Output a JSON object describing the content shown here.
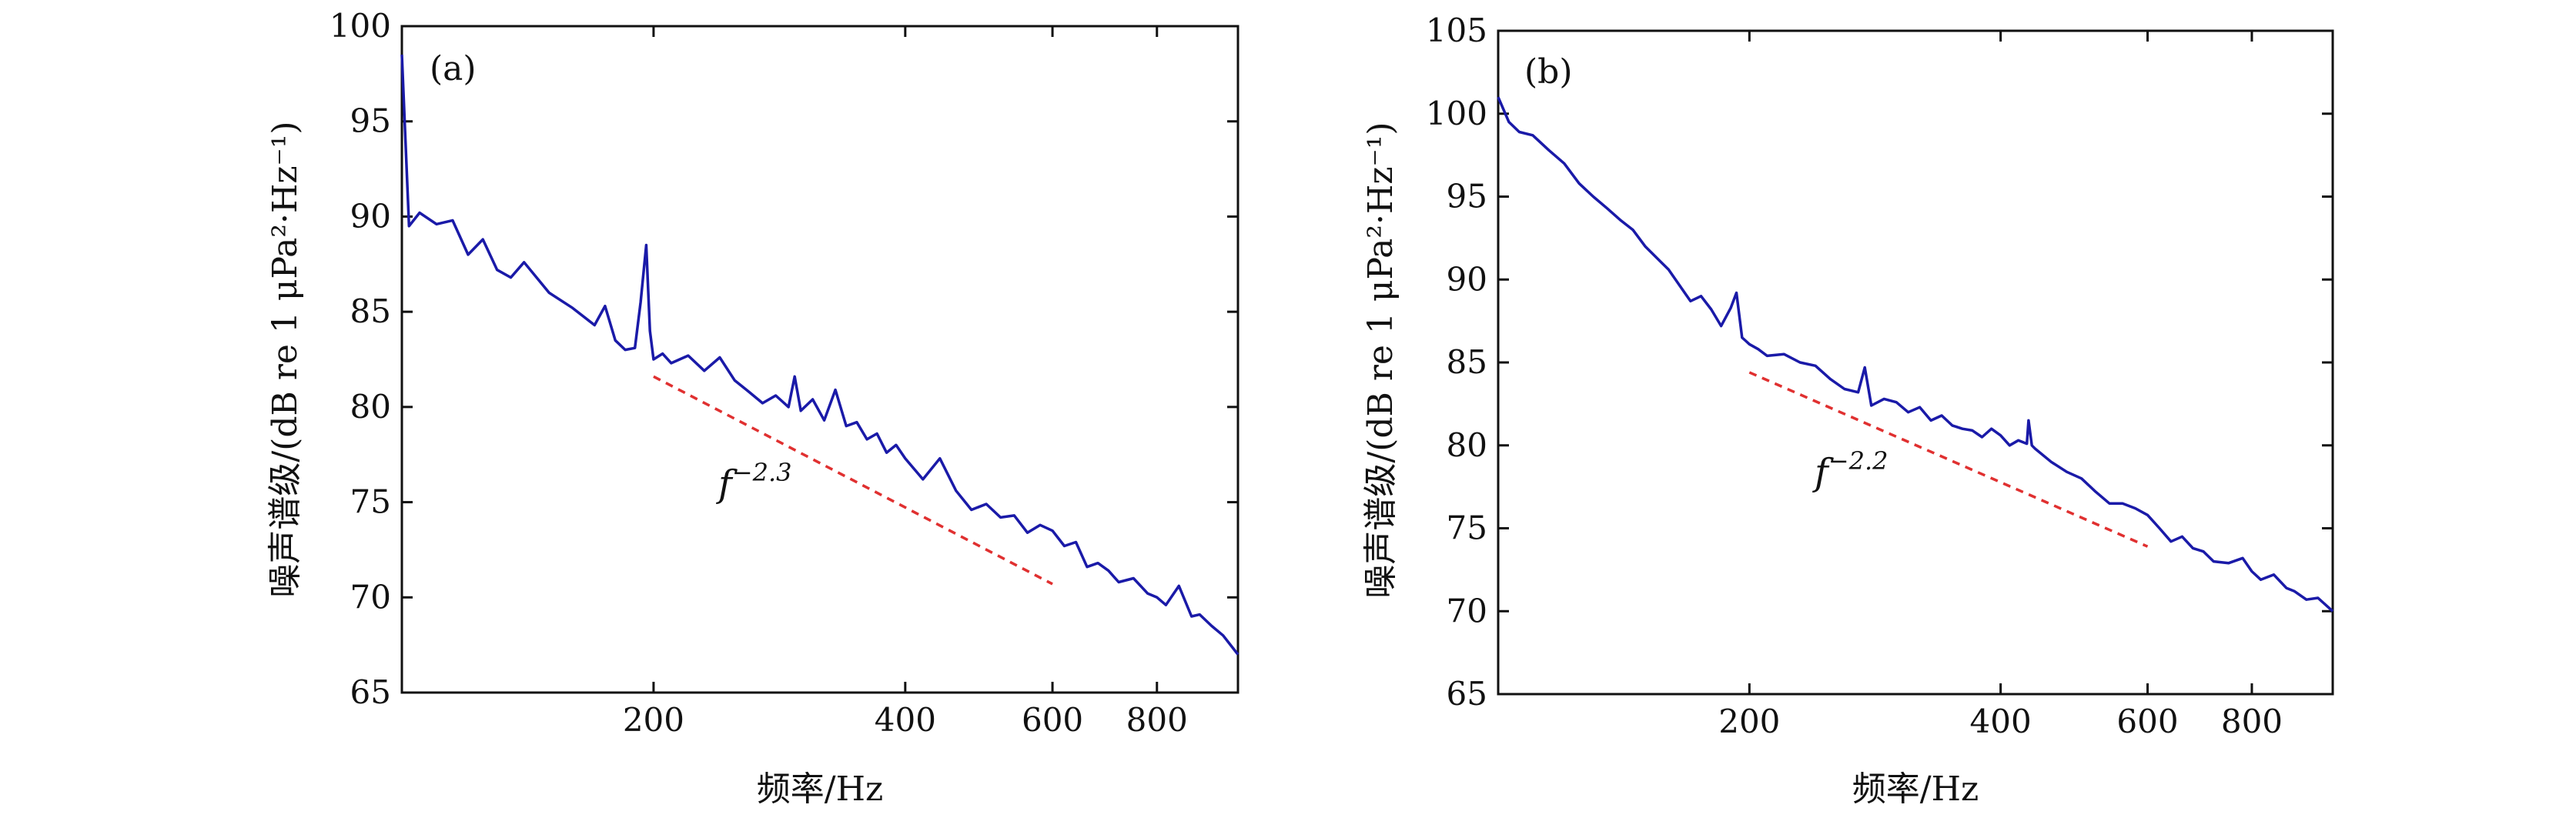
{
  "chart_data": [
    {
      "type": "line",
      "panel_label": "(a)",
      "xlabel": "频率/Hz",
      "ylabel": "噪声谱级/(dB re 1 μPa²·Hz⁻¹)",
      "x_scale": "log",
      "xlim": [
        100,
        1000
      ],
      "ylim": [
        65,
        100
      ],
      "x_ticks": [
        200,
        400,
        600,
        800
      ],
      "y_ticks": [
        65,
        70,
        75,
        80,
        85,
        90,
        95,
        100
      ],
      "grid": false,
      "legend": "none",
      "line_color": "#1a1aa8",
      "fit_color": "#e03030",
      "series": [
        {
          "x": [
            100,
            102,
            105,
            110,
            115,
            120,
            125,
            130,
            135,
            140,
            150,
            160,
            170,
            175,
            180,
            185,
            190,
            193,
            196,
            198,
            200,
            205,
            210,
            220,
            230,
            240,
            250,
            260,
            270,
            280,
            290,
            295,
            300,
            310,
            320,
            330,
            340,
            350,
            360,
            370,
            380,
            390,
            400,
            420,
            440,
            460,
            480,
            500,
            520,
            540,
            560,
            580,
            600,
            620,
            640,
            660,
            680,
            700,
            720,
            750,
            780,
            800,
            820,
            850,
            880,
            900,
            930,
            960,
            1000
          ],
          "y": [
            98.5,
            89.5,
            90.2,
            89.6,
            89.8,
            88.0,
            88.8,
            87.2,
            86.8,
            87.6,
            86.0,
            85.2,
            84.3,
            85.3,
            83.5,
            83.0,
            83.1,
            85.5,
            88.5,
            84.0,
            82.5,
            82.8,
            82.3,
            82.7,
            81.9,
            82.6,
            81.4,
            80.8,
            80.2,
            80.6,
            80.0,
            81.6,
            79.8,
            80.4,
            79.3,
            80.9,
            79.0,
            79.2,
            78.3,
            78.6,
            77.6,
            78.0,
            77.3,
            76.2,
            77.3,
            75.6,
            74.6,
            74.9,
            74.2,
            74.3,
            73.4,
            73.8,
            73.5,
            72.7,
            72.9,
            71.6,
            71.8,
            71.4,
            70.8,
            71.0,
            70.2,
            70.0,
            69.6,
            70.6,
            69.0,
            69.1,
            68.5,
            68.0,
            67.0
          ]
        }
      ],
      "fit_line": {
        "label_base": "f",
        "label_exp": "−2.3",
        "x": [
          200,
          600
        ],
        "y": [
          81.6,
          70.7
        ]
      }
    },
    {
      "type": "line",
      "panel_label": "(b)",
      "xlabel": "频率/Hz",
      "ylabel": "噪声谱级/(dB re 1 μPa²·Hz⁻¹)",
      "x_scale": "log",
      "xlim": [
        100,
        1000
      ],
      "ylim": [
        65,
        105
      ],
      "x_ticks": [
        200,
        400,
        600,
        800
      ],
      "y_ticks": [
        65,
        70,
        75,
        80,
        85,
        90,
        95,
        100,
        105
      ],
      "grid": false,
      "legend": "none",
      "line_color": "#1a1aa8",
      "fit_color": "#e03030",
      "series": [
        {
          "x": [
            100,
            103,
            106,
            110,
            115,
            120,
            125,
            130,
            135,
            140,
            145,
            150,
            160,
            170,
            175,
            180,
            185,
            190,
            193,
            196,
            198,
            200,
            205,
            210,
            220,
            230,
            240,
            250,
            260,
            270,
            275,
            280,
            290,
            300,
            310,
            320,
            330,
            340,
            350,
            360,
            370,
            380,
            390,
            400,
            410,
            420,
            430,
            432,
            436,
            440,
            460,
            480,
            500,
            520,
            540,
            560,
            580,
            600,
            620,
            640,
            660,
            680,
            700,
            720,
            750,
            780,
            800,
            820,
            850,
            880,
            900,
            930,
            960,
            1000
          ],
          "y": [
            101.0,
            99.5,
            98.9,
            98.7,
            97.8,
            97.0,
            95.8,
            95.0,
            94.3,
            93.6,
            93.0,
            92.0,
            90.6,
            88.7,
            89.0,
            88.2,
            87.2,
            88.3,
            89.2,
            86.5,
            86.3,
            86.1,
            85.8,
            85.4,
            85.5,
            85.0,
            84.8,
            84.0,
            83.4,
            83.2,
            84.7,
            82.4,
            82.8,
            82.6,
            82.0,
            82.3,
            81.5,
            81.8,
            81.2,
            81.0,
            80.9,
            80.5,
            81.0,
            80.6,
            80.0,
            80.3,
            80.1,
            81.5,
            80.0,
            79.8,
            79.0,
            78.4,
            78.0,
            77.2,
            76.5,
            76.5,
            76.2,
            75.8,
            75.0,
            74.2,
            74.5,
            73.8,
            73.6,
            73.0,
            72.9,
            73.2,
            72.4,
            71.9,
            72.2,
            71.4,
            71.2,
            70.7,
            70.8,
            70.0
          ]
        }
      ],
      "fit_line": {
        "label_base": "f",
        "label_exp": "−2.2",
        "x": [
          200,
          600
        ],
        "y": [
          84.4,
          73.9
        ]
      }
    }
  ]
}
